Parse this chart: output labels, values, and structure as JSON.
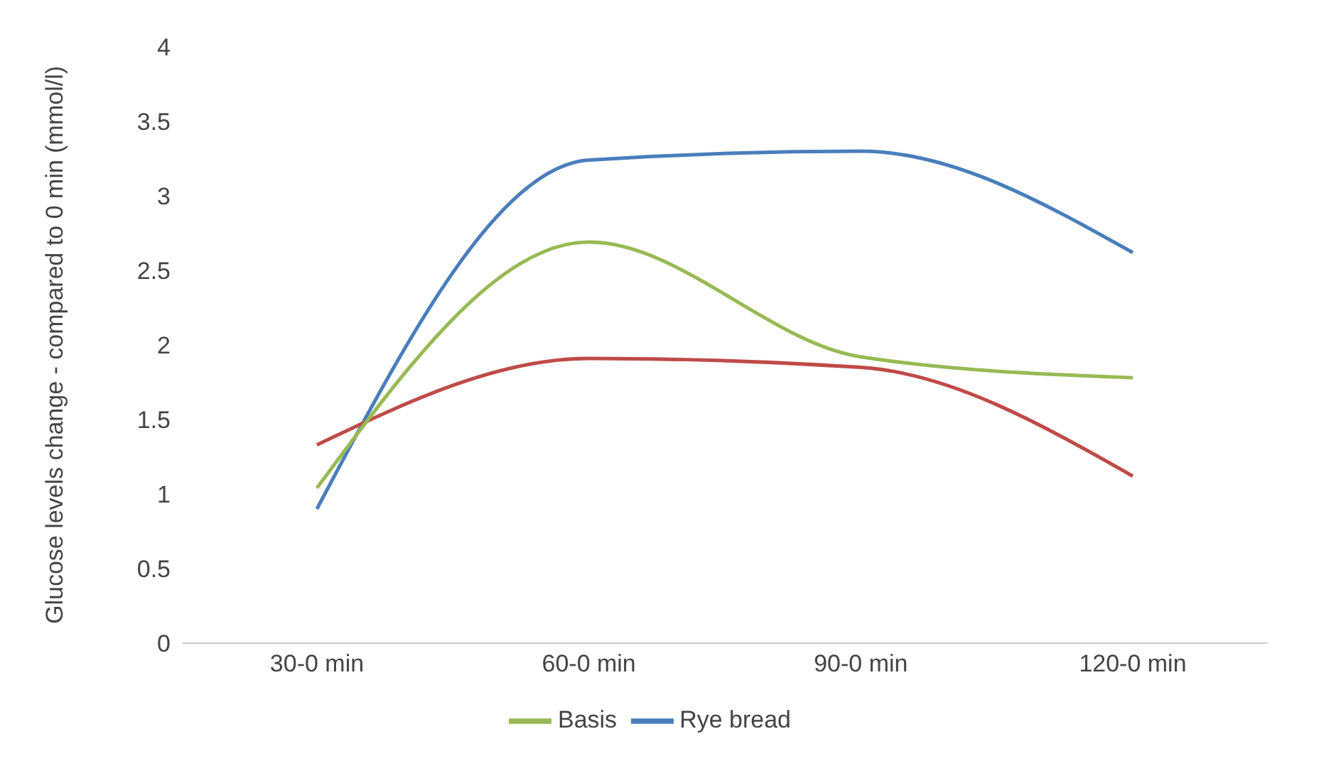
{
  "chart_data": {
    "type": "line",
    "ylabel": "Glucose levels change - compared to 0 min (mmol/l)",
    "categories": [
      "30-0 min",
      "60-0 min",
      "90-0 min",
      "120-0 min"
    ],
    "series": [
      {
        "name": "Rye bread",
        "color": "#4a7ebb",
        "values": [
          0.9,
          3.24,
          3.3,
          2.62
        ]
      },
      {
        "color": "#be4b48",
        "values": [
          1.33,
          1.91,
          1.85,
          1.12
        ]
      },
      {
        "name": "Basis",
        "color": "#98b954",
        "values": [
          1.04,
          2.69,
          1.92,
          1.78
        ]
      }
    ],
    "ylim": [
      0,
      4
    ],
    "yticks": [
      0,
      0.5,
      1,
      1.5,
      2,
      2.5,
      3,
      3.5,
      4
    ],
    "grid": false,
    "legend": "bottom",
    "marker": "none",
    "line_style": "solid"
  }
}
